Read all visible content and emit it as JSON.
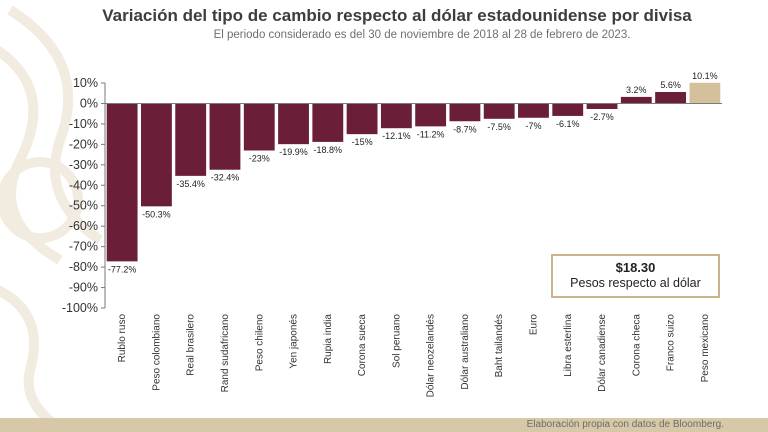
{
  "title": "Variación del tipo de cambio respecto al dólar estadounidense por divisa",
  "subtitle": "El periodo considerado es del 30 de noviembre de 2018 al 28 de febrero de 2023.",
  "info_box": {
    "value": "$18.30",
    "label": "Pesos respecto al dólar"
  },
  "footer": "Elaboración propia con datos de Bloomberg.",
  "colors": {
    "bar": "#6b1e37",
    "highlight": "#d4c19c",
    "text": "#222222"
  },
  "chart_data": {
    "type": "bar",
    "categories": [
      "Rublo ruso",
      "Peso colombiano",
      "Real brasilero",
      "Rand sudafricano",
      "Peso chileno",
      "Yen japonés",
      "Rupia india",
      "Corona sueca",
      "Sol peruano",
      "Dólar neozelandés",
      "Dólar australiano",
      "Baht tailandés",
      "Euro",
      "Libra esterlina",
      "Dólar canadiense",
      "Corona checa",
      "Franco suizo",
      "Peso mexicano"
    ],
    "values": [
      -77.2,
      -50.3,
      -35.4,
      -32.4,
      -23,
      -19.9,
      -18.8,
      -15,
      -12.1,
      -11.2,
      -8.7,
      -7.5,
      -7,
      -6.1,
      -2.7,
      3.2,
      5.6,
      10.1
    ],
    "value_labels": [
      "-77.2%",
      "-50.3%",
      "-35.4%",
      "-32.4%",
      "-23%",
      "-19.9%",
      "-18.8%",
      "-15%",
      "-12.1%",
      "-11.2%",
      "-8.7%",
      "-7.5%",
      "-7%",
      "-6.1%",
      "-2.7%",
      "3.2%",
      "5.6%",
      "10.1%"
    ],
    "highlight_category": "Peso mexicano",
    "yticks": [
      "10%",
      "0%",
      "-10%",
      "-20%",
      "-30%",
      "-40%",
      "-50%",
      "-60%",
      "-70%",
      "-80%",
      "-90%",
      "-100%"
    ],
    "ylim": [
      -100,
      10
    ],
    "grid": false,
    "legend": "none"
  }
}
